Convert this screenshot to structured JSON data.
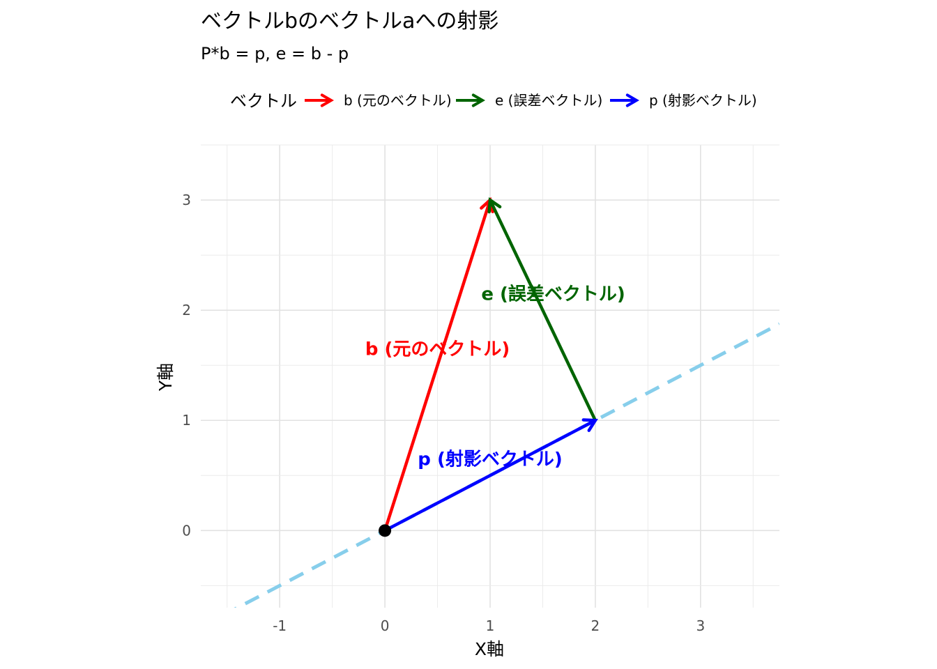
{
  "chart_data": {
    "type": "line",
    "title": "ベクトルbのベクトルaへの射影",
    "subtitle": "P*b = p,  e = b - p",
    "xlabel": "X軸",
    "ylabel": "Y軸",
    "xlim": [
      -1.75,
      3.75
    ],
    "ylim": [
      -0.7,
      3.5
    ],
    "x_ticks": [
      -1,
      0,
      1,
      2,
      3
    ],
    "y_ticks": [
      0,
      1,
      2,
      3
    ],
    "x_tick_labels": [
      "-1",
      "0",
      "1",
      "2",
      "3"
    ],
    "y_tick_labels": [
      "0",
      "1",
      "2",
      "3"
    ],
    "grid": true,
    "aspect": "equal",
    "legend": {
      "title": "ベクトル",
      "position": "top",
      "entries": [
        {
          "label": "b (元のベクトル)",
          "color": "#ff0000"
        },
        {
          "label": "e (誤差ベクトル)",
          "color": "#006400"
        },
        {
          "label": "p (射影ベクトル)",
          "color": "#0000ff"
        }
      ]
    },
    "reference_line": {
      "slope": 0.5,
      "intercept": 0,
      "color": "#87ceeb",
      "style": "dashed"
    },
    "origin_point": {
      "x": 0,
      "y": 0,
      "color": "#000000"
    },
    "vectors": [
      {
        "key": "b",
        "from": [
          0,
          0
        ],
        "to": [
          1,
          3
        ],
        "color": "#ff0000",
        "label": "b (元のベクトル)",
        "label_pos": [
          0.5,
          1.65
        ]
      },
      {
        "key": "e",
        "from": [
          2,
          1
        ],
        "to": [
          1,
          3
        ],
        "color": "#006400",
        "label": "e (誤差ベクトル)",
        "label_pos": [
          1.6,
          2.15
        ]
      },
      {
        "key": "p",
        "from": [
          0,
          0
        ],
        "to": [
          2,
          1
        ],
        "color": "#0000ff",
        "label": "p (射影ベクトル)",
        "label_pos": [
          1.0,
          0.65
        ]
      }
    ]
  }
}
